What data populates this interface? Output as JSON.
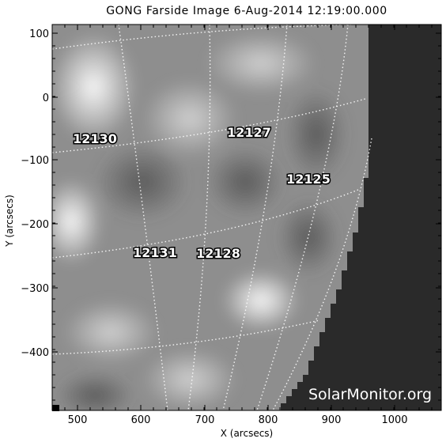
{
  "title": "GONG Farside Image   6-Aug-2014  12:19:00.000",
  "x_axis": {
    "label": "X (arcsecs)",
    "ticks": [
      "500",
      "600",
      "700",
      "800",
      "900",
      "1000"
    ]
  },
  "y_axis": {
    "label": "Y (arcsecs)",
    "ticks": [
      "100",
      "0",
      "−100",
      "−200",
      "−300",
      "−400"
    ]
  },
  "regions": [
    "12130",
    "12127",
    "12125",
    "12131",
    "12128"
  ],
  "watermark": "SolarMonitor.org",
  "colors": {
    "background_disk": "#6e6e6e",
    "off_disk": "#2a2a2a",
    "grid_lines": "#ffffff",
    "label_text": "#ffffff",
    "label_outline": "#000000"
  }
}
